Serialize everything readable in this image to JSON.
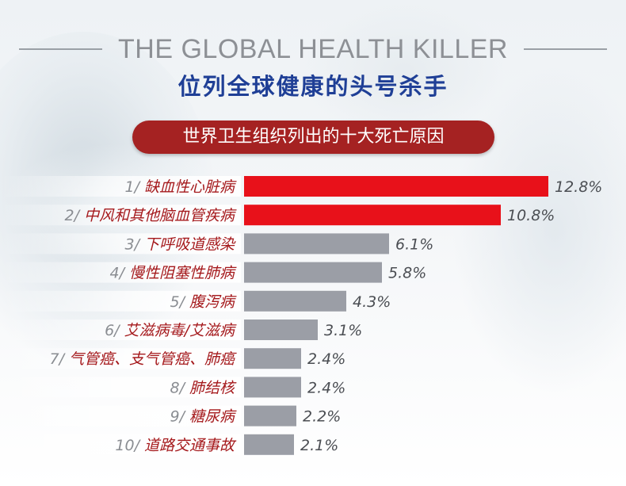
{
  "header": {
    "title_en": "THE GLOBAL HEALTH KILLER",
    "title_cn": "位列全球健康的头号杀手",
    "subtitle": "世界卫生组织列出的十大死亡原因"
  },
  "colors": {
    "highlight_bar": "#e8111a",
    "normal_bar": "#9b9ea6",
    "label_text": "#a5191c",
    "pill": "#a52222",
    "title_cn": "#1f3f96"
  },
  "chart_data": {
    "type": "bar",
    "orientation": "horizontal",
    "title": "世界卫生组织列出的十大死亡原因",
    "ranks": [
      "1/",
      "2/",
      "3/",
      "4/",
      "5/",
      "6/",
      "7/",
      "8/",
      "9/",
      "10/"
    ],
    "categories": [
      "缺血性心脏病",
      "中风和其他脑血管疾病",
      "下呼吸道感染",
      "慢性阻塞性肺病",
      "腹泻病",
      "艾滋病毒/艾滋病",
      "气管癌、支气管癌、肺癌",
      "肺结核",
      "糖尿病",
      "道路交通事故"
    ],
    "values": [
      12.8,
      10.8,
      6.1,
      5.8,
      4.3,
      3.1,
      2.4,
      2.4,
      2.2,
      2.1
    ],
    "value_labels": [
      "12.8%",
      "10.8%",
      "6.1%",
      "5.8%",
      "4.3%",
      "3.1%",
      "2.4%",
      "2.4%",
      "2.2%",
      "2.1%"
    ],
    "highlighted": [
      true,
      true,
      false,
      false,
      false,
      false,
      false,
      false,
      false,
      false
    ],
    "unit": "%",
    "xlim": [
      0,
      14
    ],
    "grid": false
  }
}
